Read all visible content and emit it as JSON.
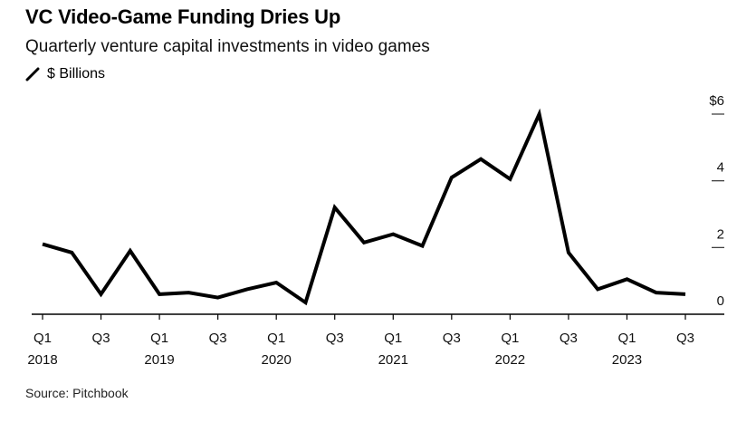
{
  "header": {
    "title": "VC Video-Game Funding Dries Up",
    "subtitle": "Quarterly venture capital investments in video games",
    "legend_label": "$ Billions"
  },
  "footer": {
    "source": "Source: Pitchbook"
  },
  "chart_data": {
    "type": "line",
    "title": "VC Video-Game Funding Dries Up",
    "subtitle": "Quarterly venture capital investments in video games",
    "ylabel": "$ Billions",
    "ylim": [
      0,
      6
    ],
    "y_ticks": [
      {
        "value": 6,
        "label": "$6"
      },
      {
        "value": 4,
        "label": "4"
      },
      {
        "value": 2,
        "label": "2"
      },
      {
        "value": 0,
        "label": "0"
      }
    ],
    "x": [
      "Q1 2018",
      "Q2 2018",
      "Q3 2018",
      "Q4 2018",
      "Q1 2019",
      "Q2 2019",
      "Q3 2019",
      "Q4 2019",
      "Q1 2020",
      "Q2 2020",
      "Q3 2020",
      "Q4 2020",
      "Q1 2021",
      "Q2 2021",
      "Q3 2021",
      "Q4 2021",
      "Q1 2022",
      "Q2 2022",
      "Q3 2022",
      "Q4 2022",
      "Q1 2023",
      "Q2 2023",
      "Q3 2023"
    ],
    "x_tick_labels": [
      {
        "index": 0,
        "line1": "Q1",
        "line2": "2018"
      },
      {
        "index": 2,
        "line1": "Q3",
        "line2": ""
      },
      {
        "index": 4,
        "line1": "Q1",
        "line2": "2019"
      },
      {
        "index": 6,
        "line1": "Q3",
        "line2": ""
      },
      {
        "index": 8,
        "line1": "Q1",
        "line2": "2020"
      },
      {
        "index": 10,
        "line1": "Q3",
        "line2": ""
      },
      {
        "index": 12,
        "line1": "Q1",
        "line2": "2021"
      },
      {
        "index": 14,
        "line1": "Q3",
        "line2": ""
      },
      {
        "index": 16,
        "line1": "Q1",
        "line2": "2022"
      },
      {
        "index": 18,
        "line1": "Q3",
        "line2": ""
      },
      {
        "index": 20,
        "line1": "Q1",
        "line2": "2023"
      },
      {
        "index": 22,
        "line1": "Q3",
        "line2": ""
      }
    ],
    "series": [
      {
        "values": [
          2.1,
          1.85,
          0.6,
          1.9,
          0.6,
          0.65,
          0.5,
          0.75,
          0.95,
          0.35,
          3.2,
          2.15,
          2.4,
          2.05,
          4.1,
          4.65,
          4.05,
          6.0,
          1.85,
          0.75,
          1.05,
          0.65,
          0.6
        ],
        "color": "#000000"
      }
    ],
    "grid": false,
    "colors": {
      "line": "#000000",
      "axis": "#000000",
      "ticks": "#333333"
    }
  }
}
